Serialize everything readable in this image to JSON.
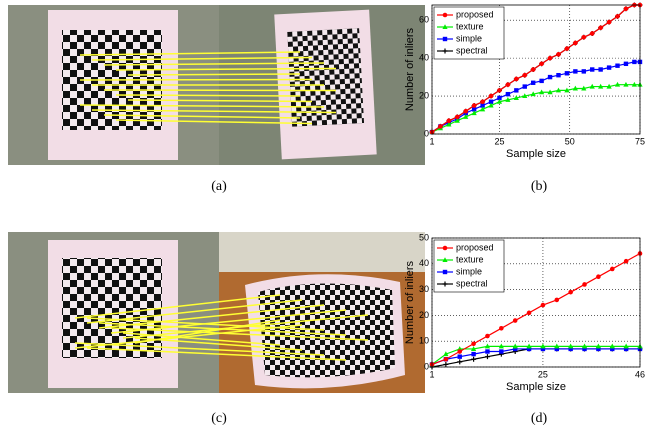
{
  "captions": [
    "(a)",
    "(b)",
    "(c)",
    "(d)"
  ],
  "chart_data": [
    {
      "type": "line",
      "xlabel": "Sample size",
      "ylabel": "Number of inliers",
      "x": [
        1,
        4,
        7,
        10,
        13,
        16,
        19,
        22,
        25,
        28,
        31,
        34,
        37,
        40,
        43,
        46,
        49,
        52,
        55,
        58,
        61,
        64,
        67,
        70,
        73,
        75
      ],
      "series": [
        {
          "name": "proposed",
          "color": "#ff0000",
          "marker": "circle",
          "values": [
            1,
            4,
            7,
            9,
            12,
            15,
            17,
            20,
            23,
            26,
            29,
            31,
            34,
            37,
            40,
            42,
            45,
            48,
            51,
            53,
            56,
            59,
            62,
            66,
            68,
            68
          ]
        },
        {
          "name": "texture",
          "color": "#00ee00",
          "marker": "triangle",
          "values": [
            1,
            3,
            5,
            7,
            9,
            11,
            13,
            15,
            17,
            18,
            19,
            20,
            21,
            22,
            22,
            23,
            23,
            24,
            24,
            25,
            25,
            25,
            26,
            26,
            26,
            26
          ]
        },
        {
          "name": "simple",
          "color": "#0000ff",
          "marker": "square",
          "values": [
            1,
            4,
            6,
            8,
            11,
            13,
            15,
            17,
            19,
            21,
            23,
            25,
            27,
            28,
            30,
            31,
            32,
            33,
            33,
            34,
            34,
            35,
            36,
            37,
            38,
            38
          ]
        },
        {
          "name": "spectral",
          "color": "#000000",
          "marker": "plus",
          "values": [
            1,
            4,
            7,
            9,
            12,
            15,
            17,
            20,
            23,
            26,
            29,
            31,
            34,
            37,
            40,
            42,
            45,
            48,
            51,
            53,
            56,
            59,
            62,
            66,
            68,
            68
          ]
        }
      ],
      "xlim": [
        1,
        75
      ],
      "xticks": [
        1,
        25,
        50,
        75
      ],
      "ylim": [
        0,
        68
      ],
      "yticks": [
        0,
        20,
        40,
        60
      ],
      "grid": true,
      "legend": "upper-left"
    },
    {
      "type": "line",
      "xlabel": "Sample size",
      "ylabel": "Number of inliers",
      "x": [
        1,
        4,
        7,
        10,
        13,
        16,
        19,
        22,
        25,
        28,
        31,
        34,
        37,
        40,
        43,
        46
      ],
      "series": [
        {
          "name": "proposed",
          "color": "#ff0000",
          "marker": "circle",
          "values": [
            1,
            3,
            6,
            9,
            12,
            15,
            18,
            21,
            24,
            26,
            29,
            32,
            35,
            38,
            41,
            44
          ]
        },
        {
          "name": "texture",
          "color": "#00ee00",
          "marker": "triangle",
          "values": [
            1,
            5,
            7,
            7,
            8,
            8,
            8,
            8,
            8,
            8,
            8,
            8,
            8,
            8,
            8,
            8
          ]
        },
        {
          "name": "simple",
          "color": "#0000ff",
          "marker": "square",
          "values": [
            1,
            3,
            4,
            5,
            6,
            6,
            7,
            7,
            7,
            7,
            7,
            7,
            7,
            7,
            7,
            7
          ]
        },
        {
          "name": "spectral",
          "color": "#000000",
          "marker": "plus",
          "values": [
            0,
            1,
            2,
            3,
            4,
            5,
            6,
            7,
            7,
            7,
            7,
            7,
            7,
            7,
            7,
            7
          ]
        }
      ],
      "xlim": [
        1,
        46
      ],
      "xticks": [
        1,
        25,
        46
      ],
      "ylim": [
        0,
        50
      ],
      "yticks": [
        0,
        10,
        20,
        30,
        40,
        50
      ],
      "grid": true,
      "legend": "upper-left"
    }
  ]
}
